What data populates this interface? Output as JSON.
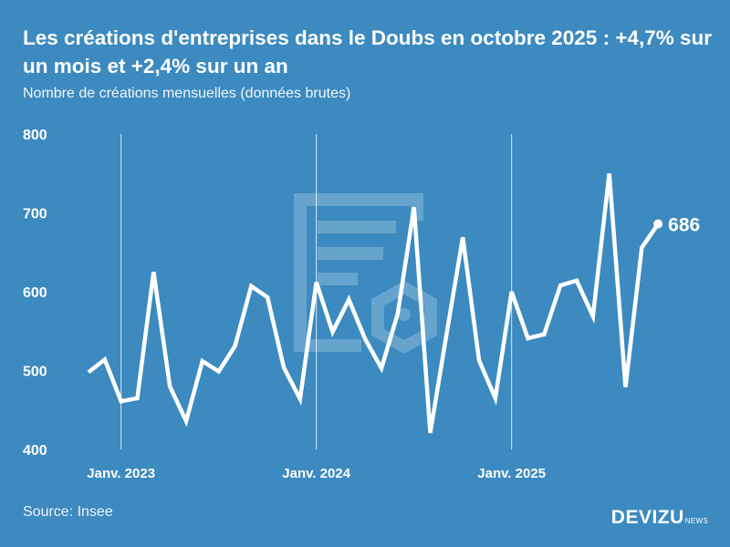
{
  "title": "Les créations d'entreprises dans le Doubs en octobre 2025 : +4,7% sur un mois et +2,4% sur un an",
  "subtitle": "Nombre de créations mensuelles (données brutes)",
  "source": "Source: Insee",
  "logo": {
    "main": "DEVIZU",
    "sub": "NEWS"
  },
  "colors": {
    "background": "#3c8abf",
    "line": "#ffffff"
  },
  "chart_data": {
    "type": "line",
    "title": "Les créations d'entreprises dans le Doubs en octobre 2025 : +4,7% sur un mois et +2,4% sur un an",
    "ylabel": "Nombre de créations mensuelles (données brutes)",
    "ylim": [
      400,
      800
    ],
    "yticks": [
      400,
      500,
      600,
      700,
      800
    ],
    "xtick_labels": [
      {
        "index": 2,
        "label": "Janv. 2023"
      },
      {
        "index": 14,
        "label": "Janv. 2024"
      },
      {
        "index": 26,
        "label": "Janv. 2025"
      }
    ],
    "x": [
      "2022-11",
      "2022-12",
      "2023-01",
      "2023-02",
      "2023-03",
      "2023-04",
      "2023-05",
      "2023-06",
      "2023-07",
      "2023-08",
      "2023-09",
      "2023-10",
      "2023-11",
      "2023-12",
      "2024-01",
      "2024-02",
      "2024-03",
      "2024-04",
      "2024-05",
      "2024-06",
      "2024-07",
      "2024-08",
      "2024-09",
      "2024-10",
      "2024-11",
      "2024-12",
      "2025-01",
      "2025-02",
      "2025-03",
      "2025-04",
      "2025-05",
      "2025-06",
      "2025-07",
      "2025-08",
      "2025-09",
      "2025-10"
    ],
    "series": [
      {
        "name": "Créations",
        "values": [
          498,
          514,
          461,
          465,
          625,
          480,
          436,
          512,
          499,
          531,
          607,
          593,
          504,
          464,
          612,
          549,
          590,
          540,
          503,
          572,
          707,
          421,
          546,
          669,
          513,
          465,
          600,
          541,
          546,
          608,
          614,
          569,
          750,
          479,
          656,
          686
        ]
      }
    ],
    "last_label": "686",
    "grid": "vertical lines at January"
  }
}
